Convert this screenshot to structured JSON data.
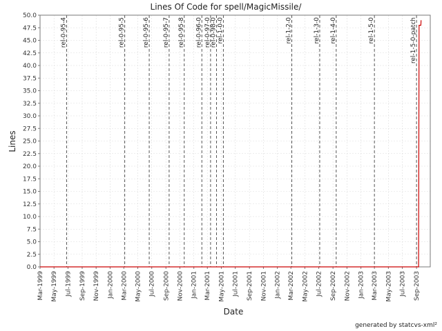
{
  "chart_data": {
    "type": "line",
    "title": "Lines Of Code for spell/MagicMissile/",
    "xlabel": "Date",
    "ylabel": "Lines",
    "ylim": [
      0,
      50
    ],
    "xlim": [
      "1999-03-01",
      "2003-10-31"
    ],
    "y_ticks": [
      "0.0",
      "2.5",
      "5.0",
      "7.5",
      "10.0",
      "12.5",
      "15.0",
      "17.5",
      "20.0",
      "22.5",
      "25.0",
      "27.5",
      "30.0",
      "32.5",
      "35.0",
      "37.5",
      "40.0",
      "42.5",
      "45.0",
      "47.5",
      "50.0"
    ],
    "x_ticks": [
      {
        "date": "1999-03-01",
        "label": "Mar-1999"
      },
      {
        "date": "1999-05-01",
        "label": "May-1999"
      },
      {
        "date": "1999-07-01",
        "label": "Jul-1999"
      },
      {
        "date": "1999-09-01",
        "label": "Sep-1999"
      },
      {
        "date": "1999-11-01",
        "label": "Nov-1999"
      },
      {
        "date": "2000-01-01",
        "label": "Jan-2000"
      },
      {
        "date": "2000-03-01",
        "label": "Mar-2000"
      },
      {
        "date": "2000-05-01",
        "label": "May-2000"
      },
      {
        "date": "2000-07-01",
        "label": "Jul-2000"
      },
      {
        "date": "2000-09-01",
        "label": "Sep-2000"
      },
      {
        "date": "2000-11-01",
        "label": "Nov-2000"
      },
      {
        "date": "2001-01-01",
        "label": "Jan-2001"
      },
      {
        "date": "2001-03-01",
        "label": "Mar-2001"
      },
      {
        "date": "2001-05-01",
        "label": "May-2001"
      },
      {
        "date": "2001-07-01",
        "label": "Jul-2001"
      },
      {
        "date": "2001-09-01",
        "label": "Sep-2001"
      },
      {
        "date": "2001-11-01",
        "label": "Nov-2001"
      },
      {
        "date": "2002-01-01",
        "label": "Jan-2002"
      },
      {
        "date": "2002-03-01",
        "label": "Mar-2002"
      },
      {
        "date": "2002-05-01",
        "label": "May-2002"
      },
      {
        "date": "2002-07-01",
        "label": "Jul-2002"
      },
      {
        "date": "2002-09-01",
        "label": "Sep-2002"
      },
      {
        "date": "2002-11-01",
        "label": "Nov-2002"
      },
      {
        "date": "2003-01-01",
        "label": "Jan-2003"
      },
      {
        "date": "2003-03-01",
        "label": "Mar-2003"
      },
      {
        "date": "2003-05-01",
        "label": "May-2003"
      },
      {
        "date": "2003-07-01",
        "label": "Jul-2003"
      },
      {
        "date": "2003-09-01",
        "label": "Sep-2003"
      }
    ],
    "grid": true,
    "series": [
      {
        "color": "#cc0000",
        "points": [
          {
            "x": "1999-03-01",
            "y": 0
          },
          {
            "x": "2003-09-10",
            "y": 0
          },
          {
            "x": "2003-09-12",
            "y": 48
          },
          {
            "x": "2003-09-20",
            "y": 48
          },
          {
            "x": "2003-09-21",
            "y": 49
          }
        ]
      }
    ],
    "tags": [
      {
        "date": "1999-06-25",
        "label": "rel-0-95-4"
      },
      {
        "date": "2000-03-05",
        "label": "rel-0-95-5"
      },
      {
        "date": "2000-06-20",
        "label": "rel-0-95-6"
      },
      {
        "date": "2000-09-15",
        "label": "rel-0-95-7"
      },
      {
        "date": "2000-11-20",
        "label": "rel-0-95-8"
      },
      {
        "date": "2001-02-05",
        "label": "rel-0-96-0"
      },
      {
        "date": "2001-03-15",
        "label": "rel-0-97-0"
      },
      {
        "date": "2001-04-10",
        "label": "rel-0-98-0"
      },
      {
        "date": "2001-05-10",
        "label": "rel-1-0-0"
      },
      {
        "date": "2002-03-05",
        "label": "rel-1-2-0"
      },
      {
        "date": "2002-07-05",
        "label": "rel-1-3-0"
      },
      {
        "date": "2002-09-15",
        "label": "rel-1-4-0"
      },
      {
        "date": "2003-03-01",
        "label": "rel-1-5-0"
      },
      {
        "date": "2003-09-01",
        "label": "rel-1-5-0-patch"
      }
    ],
    "colors": {
      "line": "#cc0000",
      "tag": "#555555",
      "grid": "#dddddd",
      "axis": "#777777"
    },
    "footer": "generated by statcvs-xml²"
  }
}
